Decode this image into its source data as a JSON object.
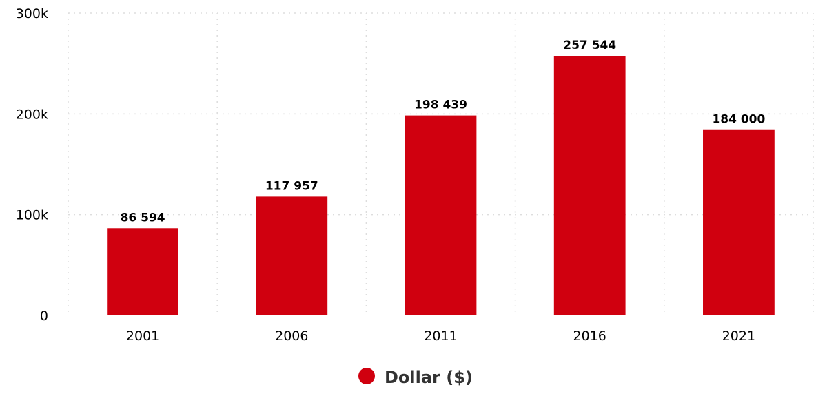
{
  "chart_data": {
    "type": "bar",
    "categories": [
      "2001",
      "2006",
      "2011",
      "2016",
      "2021"
    ],
    "series": [
      {
        "name": "Dollar ($)",
        "values": [
          86594,
          117957,
          198439,
          257544,
          184000
        ],
        "value_labels": [
          "86 594",
          "117 957",
          "198 439",
          "257 544",
          "184 000"
        ],
        "color": "#d0000f"
      }
    ],
    "title": "",
    "xlabel": "",
    "ylabel": "",
    "ylim": [
      0,
      300000
    ],
    "yticks": [
      {
        "value": 0,
        "label": "0"
      },
      {
        "value": 100000,
        "label": "100k"
      },
      {
        "value": 200000,
        "label": "200k"
      },
      {
        "value": 300000,
        "label": "300k"
      }
    ],
    "grid": true,
    "legend": {
      "position": "bottom-center",
      "entries": [
        {
          "label": "Dollar ($)",
          "color": "#d0000f",
          "marker": "circle"
        }
      ]
    }
  }
}
